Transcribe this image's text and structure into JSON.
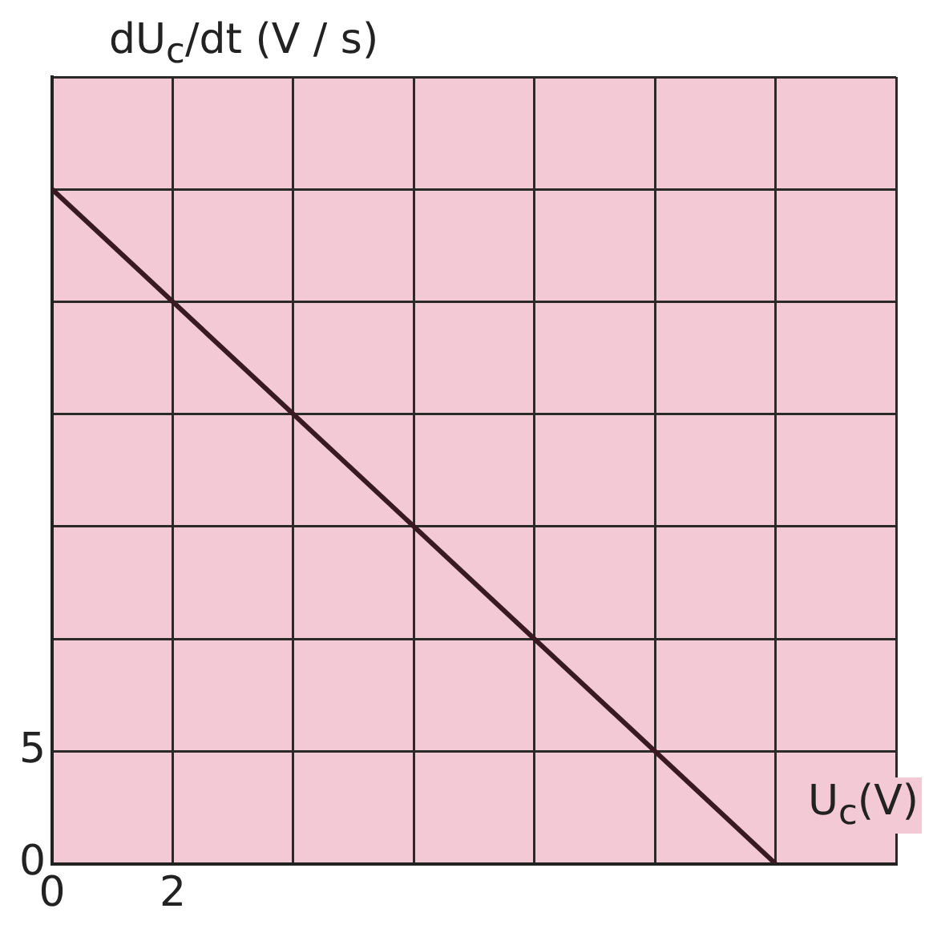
{
  "chart_data": {
    "type": "line",
    "xlabel": "U$_{c}$(V)",
    "ylabel": "dU$_{c}$/dt (V / s)",
    "x": [
      0,
      12
    ],
    "series": [
      {
        "color": "#3a1a22",
        "values": [
          30,
          0
        ]
      }
    ],
    "xlim": [
      0,
      14
    ],
    "xticks": [
      0,
      2,
      {
        "value": 4,
        "label": null
      },
      {
        "value": 6,
        "label": null
      },
      {
        "value": 8,
        "label": null
      },
      {
        "value": 10,
        "label": null
      },
      {
        "value": 12,
        "label": null
      },
      {
        "value": 14,
        "label": null
      }
    ],
    "ylim": [
      0,
      35
    ],
    "yticks": [
      0,
      5,
      {
        "value": 10,
        "label": null
      },
      {
        "value": 15,
        "label": null
      },
      {
        "value": 20,
        "label": null
      },
      {
        "value": 25,
        "label": null
      },
      {
        "value": 30,
        "label": null
      },
      {
        "value": 35,
        "label": null
      }
    ],
    "grid": true,
    "marker": "none",
    "line_style": "solid",
    "legend": false
  }
}
